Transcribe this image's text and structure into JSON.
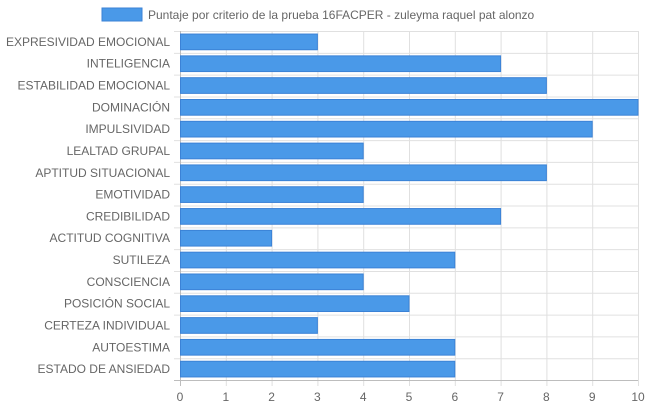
{
  "chart_data": {
    "type": "bar",
    "orientation": "horizontal",
    "legend": "top",
    "grid": true,
    "xlim": [
      0,
      10
    ],
    "x_ticks": [
      "0",
      "1",
      "2",
      "3",
      "4",
      "5",
      "6",
      "7",
      "8",
      "9",
      "10"
    ],
    "categories": [
      "EXPRESIVIDAD EMOCIONAL",
      "INTELIGENCIA",
      "ESTABILIDAD EMOCIONAL",
      "DOMINACIÓN",
      "IMPULSIVIDAD",
      "LEALTAD GRUPAL",
      "APTITUD SITUACIONAL",
      "EMOTIVIDAD",
      "CREDIBILIDAD",
      "ACTITUD COGNITIVA",
      "SUTILEZA",
      "CONSCIENCIA",
      "POSICIÓN SOCIAL",
      "CERTEZA INDIVIDUAL",
      "AUTOESTIMA",
      "ESTADO DE ANSIEDAD"
    ],
    "series": [
      {
        "name": "Puntaje por criterio de la prueba 16FACPER - zuleyma raquel pat alonzo",
        "color": "#4a99e8",
        "border_color": "#3b82d6",
        "values": [
          3,
          7,
          8,
          10,
          9,
          4,
          8,
          4,
          7,
          2,
          6,
          4,
          5,
          3,
          6,
          6
        ]
      }
    ]
  }
}
